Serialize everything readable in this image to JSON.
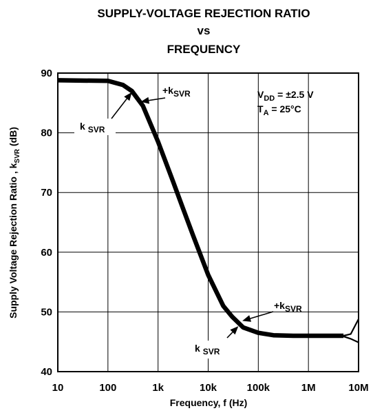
{
  "chart_data": {
    "type": "line",
    "title": [
      "SUPPLY-VOLTAGE REJECTION RATIO",
      "vs",
      "FREQUENCY"
    ],
    "xlabel": "Frequency, f (Hz)",
    "ylabel": {
      "text": "Supply Voltage Rejection Ratio , k",
      "subscript": "SVR",
      "unit": " (dB)"
    },
    "x_scale": "log",
    "xlim": [
      10,
      10000000
    ],
    "ylim": [
      40,
      90
    ],
    "grid": true,
    "x_ticks": [
      {
        "value": 10,
        "label": "10"
      },
      {
        "value": 100,
        "label": "100"
      },
      {
        "value": 1000,
        "label": "1k"
      },
      {
        "value": 10000,
        "label": "10k"
      },
      {
        "value": 100000,
        "label": "100k"
      },
      {
        "value": 1000000,
        "label": "1M"
      },
      {
        "value": 10000000,
        "label": "10M"
      }
    ],
    "y_ticks": [
      {
        "value": 40,
        "label": "40"
      },
      {
        "value": 50,
        "label": "50"
      },
      {
        "value": 60,
        "label": "60"
      },
      {
        "value": 70,
        "label": "70"
      },
      {
        "value": 80,
        "label": "80"
      },
      {
        "value": 90,
        "label": "90"
      }
    ],
    "conditions": [
      {
        "main": "V",
        "sub": "DD",
        "rest": " = ±2.5 V"
      },
      {
        "main": "T",
        "sub": "A",
        "rest": " = 25°C"
      }
    ],
    "series": [
      {
        "label_prefix": "+k",
        "label_sub": "SVR",
        "x": [
          10,
          100,
          200,
          300,
          500,
          1000,
          2000,
          3000,
          5000,
          10000,
          20000,
          30000,
          50000,
          100000,
          200000,
          500000,
          1000000,
          2000000,
          3000000,
          5000000,
          7000000,
          10000000
        ],
        "y": [
          88.8,
          88.7,
          88.0,
          87.0,
          84.5,
          78.5,
          71.8,
          67.8,
          62.8,
          56.2,
          51.0,
          49.2,
          47.4,
          46.5,
          46.1,
          46.0,
          46.0,
          46.0,
          46.0,
          46.0,
          46.3,
          48.8
        ]
      },
      {
        "label_prefix": "k",
        "label_sub": "SVR",
        "x": [
          10,
          100,
          200,
          300,
          500,
          1000,
          2000,
          3000,
          5000,
          10000,
          20000,
          30000,
          50000,
          100000,
          200000,
          500000,
          1000000,
          2000000,
          3000000,
          5000000,
          7000000,
          10000000
        ],
        "y": [
          88.8,
          88.7,
          88.0,
          87.0,
          84.5,
          78.5,
          71.8,
          67.8,
          62.8,
          56.2,
          51.0,
          49.2,
          47.4,
          46.5,
          46.1,
          46.0,
          46.0,
          46.0,
          46.0,
          45.9,
          45.5,
          44.9
        ]
      }
    ],
    "annotations": [
      {
        "prefix": "+k",
        "sub": "SVR",
        "points_to": {
          "x": 450,
          "y": 85.2
        }
      },
      {
        "prefix": "k",
        "sub": "SVR",
        "points_to": {
          "x": 300,
          "y": 86.8
        }
      },
      {
        "prefix": "+k",
        "sub": "SVR",
        "points_to": {
          "x": 48000,
          "y": 48.5
        }
      },
      {
        "prefix": "k",
        "sub": "SVR",
        "points_to": {
          "x": 40000,
          "y": 47.6
        }
      }
    ]
  }
}
